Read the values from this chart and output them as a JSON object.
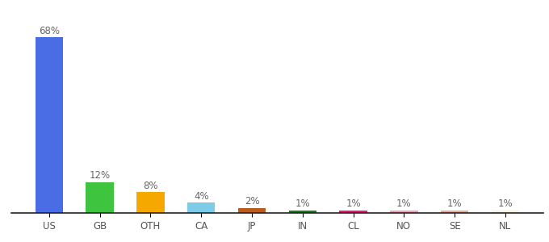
{
  "categories": [
    "US",
    "GB",
    "OTH",
    "CA",
    "JP",
    "IN",
    "CL",
    "NO",
    "SE",
    "NL"
  ],
  "values": [
    68,
    12,
    8,
    4,
    2,
    1,
    1,
    1,
    1,
    1
  ],
  "labels": [
    "68%",
    "12%",
    "8%",
    "4%",
    "2%",
    "1%",
    "1%",
    "1%",
    "1%",
    "1%"
  ],
  "bar_colors": [
    "#4a6de5",
    "#3ec43e",
    "#f5a800",
    "#7ecbe8",
    "#b85c20",
    "#1e7a1e",
    "#e8187c",
    "#f0a0b0",
    "#e8a898",
    "#f5f0d8"
  ],
  "ylim": [
    0,
    75
  ],
  "background_color": "#ffffff",
  "label_fontsize": 8.5,
  "tick_fontsize": 8.5,
  "bar_width": 0.55
}
